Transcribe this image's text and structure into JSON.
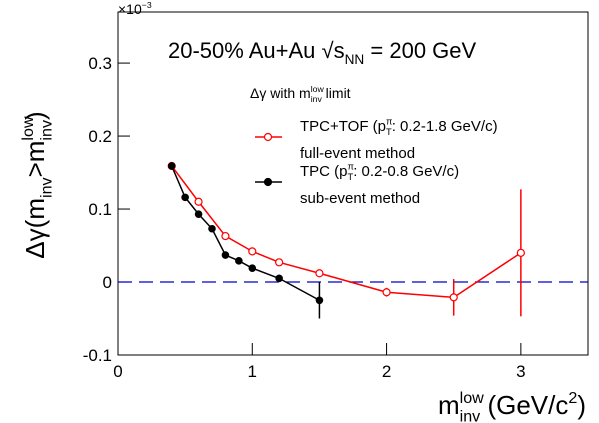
{
  "chart_data": {
    "type": "line",
    "exponent_label": [
      {
        "text": "×10"
      },
      {
        "text": "−3",
        "sup": true
      }
    ],
    "title": [
      {
        "text": "20-50% Au+Au "
      },
      {
        "text": "√"
      },
      {
        "text": "s"
      },
      {
        "text": "NN",
        "sub": true
      },
      {
        "text": " = 200 GeV"
      }
    ],
    "legend_title": [
      {
        "text": "Δγ with m"
      },
      {
        "text": "low",
        "sup": true
      },
      {
        "text": "inv",
        "sub": true
      },
      {
        "text": " limit"
      }
    ],
    "y_label": [
      {
        "text": "Δγ(m"
      },
      {
        "text": "inv",
        "sub": true
      },
      {
        "text": ">m"
      },
      {
        "text": "low",
        "sup": true
      },
      {
        "text": "inv",
        "sub": true
      },
      {
        "text": ")"
      }
    ],
    "x_label": [
      {
        "text": "m"
      },
      {
        "text": "low",
        "sup": true
      },
      {
        "text": "inv",
        "sub": true
      },
      {
        "text": " (GeV/c"
      },
      {
        "text": "2",
        "sup": true
      },
      {
        "text": ")"
      }
    ],
    "xlim": [
      0,
      3.5
    ],
    "ylim": [
      -0.1,
      0.37
    ],
    "xticks": [
      0,
      1,
      2,
      3
    ],
    "yticks": [
      -0.1,
      0,
      0.1,
      0.2,
      0.3
    ],
    "reference_y": 0,
    "reference_color": "#0000cc",
    "series": [
      {
        "name": [
          {
            "text": "TPC+TOF (p"
          },
          {
            "text": "π",
            "sup": true
          },
          {
            "text": "T",
            "sub": true
          },
          {
            "text": ": 0.2-1.8 GeV/c)"
          }
        ],
        "method": "full-event method",
        "color": "#ff0000",
        "marker": "open",
        "x": [
          0.4,
          0.6,
          0.8,
          1.0,
          1.2,
          1.5,
          2.0,
          2.5,
          3.0
        ],
        "values": [
          0.159,
          0.11,
          0.063,
          0.042,
          0.027,
          0.012,
          -0.014,
          -0.021,
          0.04
        ],
        "errors": [
          0.003,
          0.003,
          0.003,
          0.003,
          0.003,
          0.004,
          0.006,
          0.025,
          0.087
        ]
      },
      {
        "name": [
          {
            "text": "TPC (p"
          },
          {
            "text": "π",
            "sup": true
          },
          {
            "text": "T",
            "sub": true
          },
          {
            "text": ": 0.2-0.8 GeV/c)"
          }
        ],
        "method": "sub-event method",
        "color": "#000000",
        "marker": "filled",
        "x": [
          0.4,
          0.5,
          0.6,
          0.7,
          0.8,
          0.9,
          1.0,
          1.2,
          1.5
        ],
        "values": [
          0.159,
          0.116,
          0.093,
          0.073,
          0.037,
          0.029,
          0.019,
          0.005,
          -0.025
        ],
        "errors": [
          0.003,
          0.003,
          0.003,
          0.003,
          0.003,
          0.003,
          0.003,
          0.005,
          0.025
        ]
      }
    ]
  }
}
